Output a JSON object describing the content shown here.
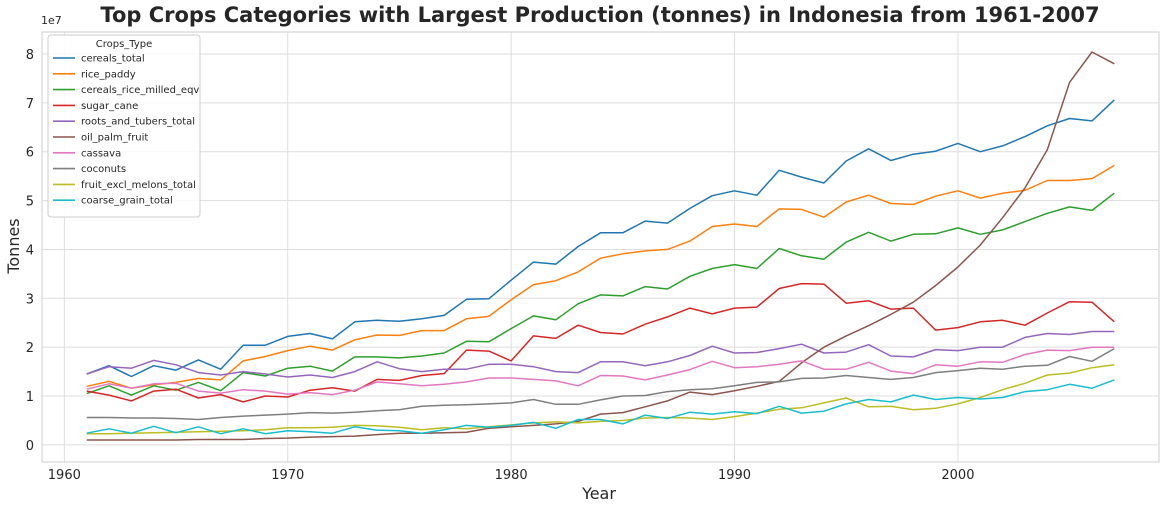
{
  "chart_data": {
    "type": "line",
    "title": "Top Crops Categories with Largest Production (tonnes) in Indonesia from 1961-2007",
    "xlabel": "Year",
    "ylabel": "Tonnes",
    "y_multiplier_label": "1e7",
    "xlim": [
      1959,
      2009
    ],
    "ylim": [
      -0.35,
      8.45
    ],
    "y_unit": 10000000,
    "x_ticks": [
      1960,
      1970,
      1980,
      1990,
      2000
    ],
    "y_ticks": [
      0,
      1,
      2,
      3,
      4,
      5,
      6,
      7,
      8
    ],
    "grid": true,
    "legend": {
      "title": "Crops_Type",
      "position": "top-left"
    },
    "x": [
      1961,
      1962,
      1963,
      1964,
      1965,
      1966,
      1967,
      1968,
      1969,
      1970,
      1971,
      1972,
      1973,
      1974,
      1975,
      1976,
      1977,
      1978,
      1979,
      1980,
      1981,
      1982,
      1983,
      1984,
      1985,
      1986,
      1987,
      1988,
      1989,
      1990,
      1991,
      1992,
      1993,
      1994,
      1995,
      1996,
      1997,
      1998,
      1999,
      2000,
      2001,
      2002,
      2003,
      2004,
      2005,
      2006,
      2007
    ],
    "series": [
      {
        "name": "cereals_total",
        "color": "#1f77b4",
        "values": [
          1.45,
          1.62,
          1.4,
          1.62,
          1.53,
          1.74,
          1.55,
          2.04,
          2.04,
          2.22,
          2.28,
          2.17,
          2.52,
          2.55,
          2.53,
          2.58,
          2.65,
          2.98,
          2.99,
          3.37,
          3.74,
          3.7,
          4.06,
          4.34,
          4.34,
          4.58,
          4.54,
          4.84,
          5.1,
          5.2,
          5.11,
          5.62,
          5.48,
          5.36,
          5.81,
          6.06,
          5.82,
          5.95,
          6.01,
          6.17,
          6.0,
          6.12,
          6.31,
          6.53,
          6.68,
          6.63,
          7.06
        ]
      },
      {
        "name": "rice_paddy",
        "color": "#ff7f0e",
        "values": [
          1.2,
          1.3,
          1.16,
          1.23,
          1.28,
          1.36,
          1.33,
          1.72,
          1.81,
          1.93,
          2.02,
          1.94,
          2.15,
          2.25,
          2.24,
          2.34,
          2.34,
          2.58,
          2.63,
          2.97,
          3.28,
          3.36,
          3.54,
          3.82,
          3.91,
          3.97,
          4.0,
          4.17,
          4.47,
          4.52,
          4.47,
          4.83,
          4.82,
          4.66,
          4.97,
          5.11,
          4.94,
          4.92,
          5.09,
          5.2,
          5.05,
          5.15,
          5.21,
          5.41,
          5.41,
          5.45,
          5.72
        ]
      },
      {
        "name": "cereals_rice_milled_eqv",
        "color": "#2ca02c",
        "values": [
          1.05,
          1.21,
          1.02,
          1.21,
          1.12,
          1.28,
          1.11,
          1.48,
          1.41,
          1.57,
          1.61,
          1.51,
          1.8,
          1.8,
          1.78,
          1.82,
          1.88,
          2.12,
          2.11,
          2.38,
          2.64,
          2.56,
          2.89,
          3.07,
          3.05,
          3.24,
          3.19,
          3.45,
          3.61,
          3.69,
          3.61,
          4.02,
          3.87,
          3.8,
          4.15,
          4.35,
          4.17,
          4.31,
          4.32,
          4.44,
          4.31,
          4.4,
          4.57,
          4.74,
          4.87,
          4.8,
          5.15
        ]
      },
      {
        "name": "sugar_cane",
        "color": "#d62728",
        "values": [
          1.1,
          1.02,
          0.9,
          1.1,
          1.14,
          0.96,
          1.03,
          0.88,
          1.0,
          0.98,
          1.12,
          1.17,
          1.1,
          1.34,
          1.32,
          1.42,
          1.46,
          1.94,
          1.92,
          1.72,
          2.23,
          2.18,
          2.45,
          2.3,
          2.27,
          2.47,
          2.62,
          2.8,
          2.68,
          2.8,
          2.82,
          3.2,
          3.3,
          3.29,
          2.9,
          2.95,
          2.78,
          2.8,
          2.35,
          2.4,
          2.52,
          2.55,
          2.45,
          2.7,
          2.93,
          2.92,
          2.52
        ]
      },
      {
        "name": "roots_and_tubers_total",
        "color": "#9467bd",
        "values": [
          1.45,
          1.6,
          1.57,
          1.73,
          1.64,
          1.48,
          1.43,
          1.5,
          1.45,
          1.39,
          1.43,
          1.38,
          1.5,
          1.7,
          1.56,
          1.5,
          1.55,
          1.55,
          1.65,
          1.65,
          1.6,
          1.5,
          1.48,
          1.7,
          1.7,
          1.62,
          1.7,
          1.83,
          2.02,
          1.88,
          1.89,
          1.97,
          2.06,
          1.88,
          1.9,
          2.05,
          1.82,
          1.8,
          1.95,
          1.93,
          2.0,
          2.0,
          2.2,
          2.28,
          2.26,
          2.32,
          2.32
        ]
      },
      {
        "name": "oil_palm_fruit",
        "color": "#8c564b",
        "values": [
          0.1,
          0.1,
          0.1,
          0.1,
          0.1,
          0.11,
          0.11,
          0.11,
          0.13,
          0.14,
          0.16,
          0.17,
          0.18,
          0.21,
          0.24,
          0.24,
          0.25,
          0.26,
          0.34,
          0.37,
          0.4,
          0.43,
          0.48,
          0.63,
          0.66,
          0.78,
          0.9,
          1.08,
          1.03,
          1.11,
          1.2,
          1.3,
          1.68,
          2.0,
          2.23,
          2.44,
          2.67,
          2.92,
          3.26,
          3.64,
          4.09,
          4.65,
          5.26,
          6.04,
          7.42,
          8.04,
          7.8
        ]
      },
      {
        "name": "cassava",
        "color": "#e377c2",
        "values": [
          1.14,
          1.25,
          1.16,
          1.25,
          1.26,
          1.1,
          1.06,
          1.13,
          1.1,
          1.04,
          1.07,
          1.03,
          1.12,
          1.29,
          1.25,
          1.21,
          1.24,
          1.29,
          1.37,
          1.37,
          1.34,
          1.31,
          1.21,
          1.42,
          1.41,
          1.33,
          1.43,
          1.54,
          1.71,
          1.58,
          1.6,
          1.65,
          1.72,
          1.55,
          1.55,
          1.69,
          1.51,
          1.46,
          1.64,
          1.61,
          1.7,
          1.69,
          1.85,
          1.94,
          1.93,
          2.0,
          2.0
        ]
      },
      {
        "name": "coconuts",
        "color": "#7f7f7f",
        "values": [
          0.56,
          0.56,
          0.55,
          0.55,
          0.54,
          0.52,
          0.56,
          0.59,
          0.61,
          0.63,
          0.66,
          0.65,
          0.67,
          0.7,
          0.72,
          0.79,
          0.81,
          0.82,
          0.84,
          0.86,
          0.93,
          0.83,
          0.83,
          0.92,
          1.0,
          1.01,
          1.09,
          1.13,
          1.15,
          1.21,
          1.28,
          1.29,
          1.36,
          1.37,
          1.42,
          1.38,
          1.34,
          1.38,
          1.48,
          1.52,
          1.57,
          1.55,
          1.61,
          1.63,
          1.81,
          1.71,
          1.97
        ]
      },
      {
        "name": "fruit_excl_melons_total",
        "color": "#bcbd22",
        "values": [
          0.23,
          0.23,
          0.24,
          0.25,
          0.26,
          0.27,
          0.28,
          0.29,
          0.31,
          0.35,
          0.35,
          0.36,
          0.4,
          0.39,
          0.36,
          0.31,
          0.35,
          0.33,
          0.37,
          0.41,
          0.45,
          0.47,
          0.45,
          0.48,
          0.5,
          0.55,
          0.56,
          0.55,
          0.52,
          0.58,
          0.65,
          0.73,
          0.76,
          0.86,
          0.96,
          0.78,
          0.79,
          0.72,
          0.75,
          0.84,
          0.97,
          1.13,
          1.26,
          1.43,
          1.47,
          1.58,
          1.64
        ]
      },
      {
        "name": "coarse_grain_total",
        "color": "#17becf",
        "values": [
          0.24,
          0.33,
          0.24,
          0.38,
          0.25,
          0.37,
          0.23,
          0.33,
          0.23,
          0.29,
          0.27,
          0.24,
          0.37,
          0.3,
          0.29,
          0.24,
          0.31,
          0.4,
          0.36,
          0.4,
          0.46,
          0.34,
          0.52,
          0.52,
          0.43,
          0.61,
          0.54,
          0.67,
          0.63,
          0.68,
          0.64,
          0.79,
          0.65,
          0.69,
          0.84,
          0.93,
          0.88,
          1.02,
          0.93,
          0.97,
          0.94,
          0.97,
          1.09,
          1.13,
          1.24,
          1.16,
          1.33
        ]
      }
    ]
  }
}
